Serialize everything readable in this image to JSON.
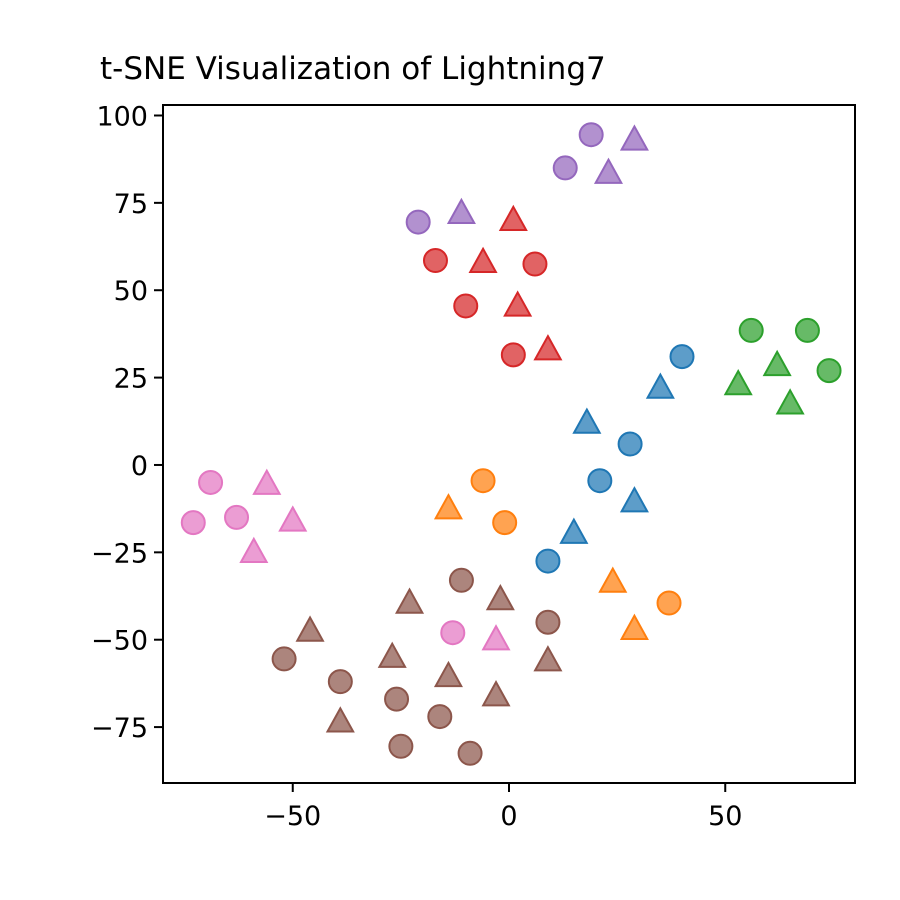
{
  "chart_data": {
    "type": "scatter",
    "title": "t-SNE Visualization of Lightning7",
    "xlabel": "",
    "ylabel": "",
    "xlim": [
      -80,
      80
    ],
    "ylim": [
      -91,
      103
    ],
    "xticks": [
      -50,
      0,
      50
    ],
    "yticks": [
      -75,
      -50,
      -25,
      0,
      25,
      50,
      75,
      100
    ],
    "xtick_labels": [
      "−50",
      "0",
      "50"
    ],
    "ytick_labels": [
      "−75",
      "−50",
      "−25",
      "0",
      "25",
      "50",
      "75",
      "100"
    ],
    "grid": false,
    "legend": "none",
    "marker_encoding": "circle and triangle markers; color distinguishes clusters",
    "series": [
      {
        "color": "#9467bd",
        "circles": [
          [
            19,
            94.5
          ],
          [
            13,
            85
          ],
          [
            -21,
            69.5
          ]
        ],
        "triangles": [
          [
            29,
            93
          ],
          [
            23,
            83.5
          ],
          [
            -11,
            72
          ]
        ]
      },
      {
        "color": "#d62728",
        "circles": [
          [
            -17,
            58.5
          ],
          [
            6,
            57.5
          ],
          [
            -10,
            45.5
          ],
          [
            1,
            31.5
          ]
        ],
        "triangles": [
          [
            1,
            70
          ],
          [
            -6,
            58
          ],
          [
            2,
            45.5
          ],
          [
            9,
            33
          ]
        ]
      },
      {
        "color": "#2ca02c",
        "circles": [
          [
            56,
            38.5
          ],
          [
            69,
            38.5
          ],
          [
            74,
            27
          ]
        ],
        "triangles": [
          [
            62,
            28.5
          ],
          [
            53,
            23
          ],
          [
            65,
            17.5
          ]
        ]
      },
      {
        "color": "#1f77b4",
        "circles": [
          [
            40,
            31
          ],
          [
            28,
            6
          ],
          [
            21,
            -4.5
          ],
          [
            9,
            -27.5
          ]
        ],
        "triangles": [
          [
            35,
            22
          ],
          [
            18,
            12
          ],
          [
            29,
            -10.5
          ],
          [
            15,
            -19.5
          ]
        ]
      },
      {
        "color": "#ff7f0e",
        "circles": [
          [
            -6,
            -4.5
          ],
          [
            -1,
            -16.5
          ],
          [
            37,
            -39.5
          ]
        ],
        "triangles": [
          [
            -14,
            -12.5
          ],
          [
            24,
            -33.5
          ],
          [
            29,
            -47
          ]
        ]
      },
      {
        "color": "#e377c2",
        "circles": [
          [
            -69,
            -5
          ],
          [
            -73,
            -16.5
          ],
          [
            -63,
            -15
          ],
          [
            -13,
            -48
          ]
        ],
        "triangles": [
          [
            -56,
            -5.5
          ],
          [
            -50,
            -16
          ],
          [
            -59,
            -25
          ],
          [
            -3,
            -50
          ]
        ]
      },
      {
        "color": "#8c564b",
        "circles": [
          [
            -11,
            -33
          ],
          [
            9,
            -45
          ],
          [
            -52,
            -55.5
          ],
          [
            -39,
            -62
          ],
          [
            -26,
            -67
          ],
          [
            -16,
            -72
          ],
          [
            -25,
            -80.5
          ],
          [
            -9,
            -82.5
          ]
        ],
        "triangles": [
          [
            -23,
            -39.5
          ],
          [
            -2,
            -38.5
          ],
          [
            -46,
            -47.5
          ],
          [
            -27,
            -55
          ],
          [
            -14,
            -60.5
          ],
          [
            9,
            -56
          ],
          [
            -3,
            -66
          ],
          [
            -39,
            -73.5
          ]
        ]
      }
    ]
  }
}
